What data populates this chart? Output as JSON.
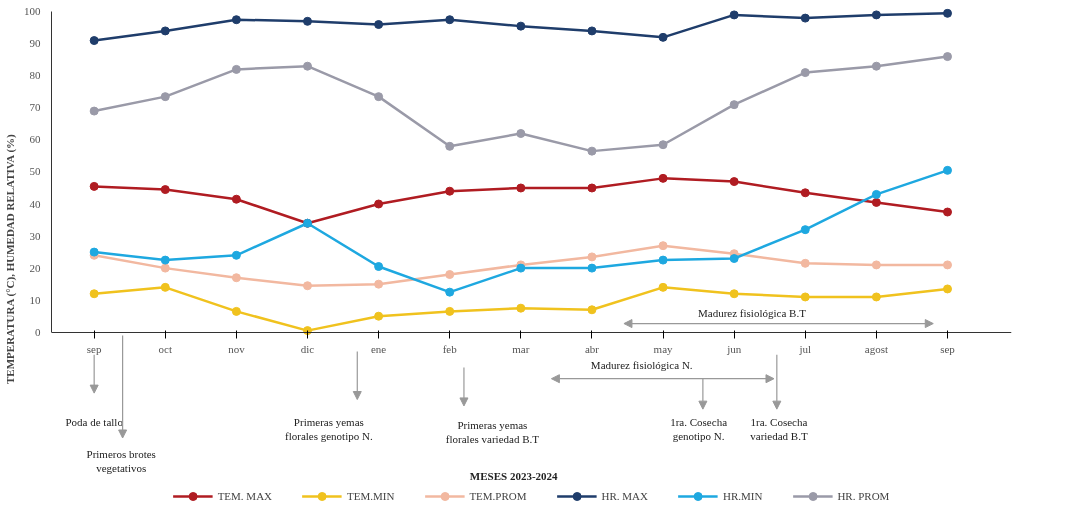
{
  "chart_data": {
    "type": "line",
    "ylabel": "TEMPERATURA (°C), HUMEDAD RELATIVA (%)",
    "categories": [
      "sep",
      "oct",
      "nov",
      "dic",
      "ene",
      "feb",
      "mar",
      "abr",
      "may",
      "jun",
      "jul",
      "agost",
      "sep"
    ],
    "ylim": [
      0,
      100
    ],
    "yticks": [
      0,
      10,
      20,
      30,
      40,
      50,
      60,
      70,
      80,
      90,
      100
    ],
    "grid": false,
    "marker": "circle",
    "line_style": "solid",
    "legend": "bottom",
    "series": [
      {
        "name": "TEM. MAX",
        "color": "#b01c22",
        "values": [
          45.5,
          44.5,
          41.5,
          34,
          40,
          44,
          45,
          45,
          48,
          47,
          43.5,
          40.5,
          37.5
        ]
      },
      {
        "name": "TEM.MIN",
        "color": "#f0c21e",
        "values": [
          12,
          14,
          6.5,
          0.5,
          5,
          6.5,
          7.5,
          7,
          14,
          12,
          11,
          11,
          13.5
        ]
      },
      {
        "name": "TEM.PROM",
        "color": "#f2b8a0",
        "values": [
          24,
          20,
          17,
          14.5,
          15,
          18,
          21,
          23.5,
          27,
          24.5,
          21.5,
          21,
          21
        ]
      },
      {
        "name": "HR. MAX",
        "color": "#1f3d6b",
        "values": [
          91,
          94,
          97.5,
          97,
          96,
          97.5,
          95.5,
          94,
          92,
          99,
          98,
          99,
          99.5
        ]
      },
      {
        "name": "HR.MIN",
        "color": "#1ea8e0",
        "values": [
          25,
          22.5,
          24,
          34,
          20.5,
          12.5,
          20,
          20,
          22.5,
          23,
          32,
          43,
          50.5
        ]
      },
      {
        "name": "HR. PROM",
        "color": "#9a9aa8",
        "values": [
          69,
          73.5,
          82,
          83,
          73.5,
          58,
          62,
          56.5,
          58.5,
          71,
          81,
          83,
          86
        ]
      }
    ],
    "annotations": [
      "Madurez fisiológica B.T",
      "Poda de tallo",
      "Primeros brotes vegetativos",
      "Primeras yemas florales genotipo N.",
      "Primeras yemas florales variedad B.T",
      "Madurez fisiológica N.",
      "1ra. Cosecha genotipo N.",
      "1ra. Cosecha variedad B.T",
      "MESES 2023-2024"
    ]
  }
}
